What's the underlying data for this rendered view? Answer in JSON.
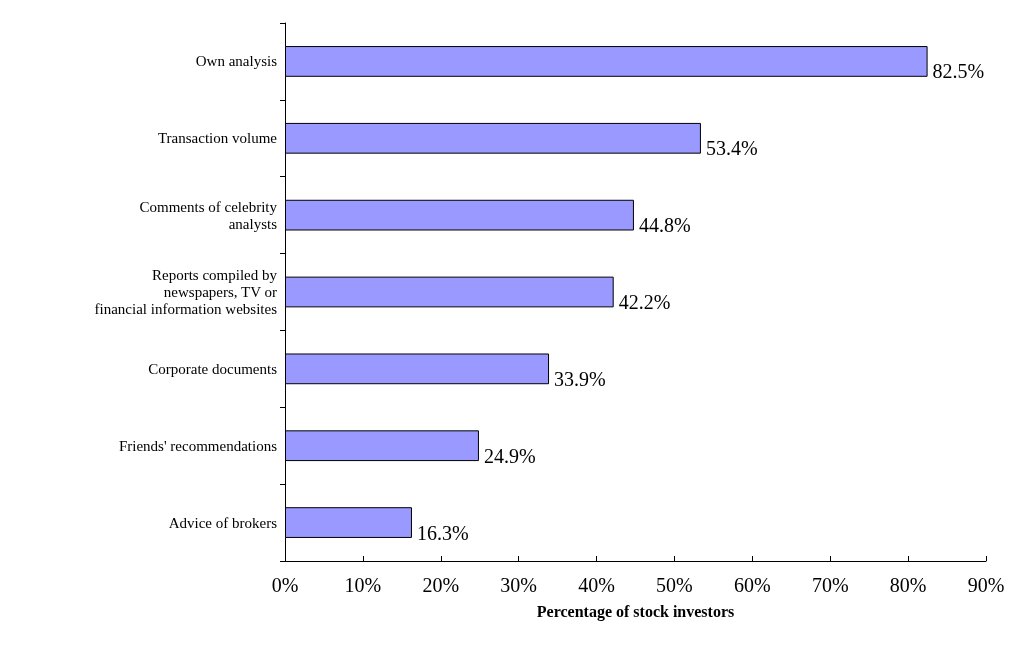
{
  "chart_data": {
    "type": "bar",
    "orientation": "horizontal",
    "xlabel": "Percentage of stock investors",
    "categories": [
      "Own analysis",
      "Transaction volume",
      "Comments of celebrity\nanalysts",
      "Reports compiled by\nnewspapers, TV or\nfinancial information websites",
      "Corporate documents",
      "Friends' recommendations",
      "Advice of brokers"
    ],
    "values": [
      82.5,
      53.4,
      44.8,
      42.2,
      33.9,
      24.9,
      16.3
    ],
    "value_labels": [
      "82.5%",
      "53.4%",
      "44.8%",
      "42.2%",
      "33.9%",
      "24.9%",
      "16.3%"
    ],
    "color": "#9999ff",
    "xlim": [
      0,
      90
    ],
    "xticks": [
      {
        "value": 0,
        "label": "0%"
      },
      {
        "value": 10,
        "label": "10%"
      },
      {
        "value": 20,
        "label": "20%"
      },
      {
        "value": 30,
        "label": "30%"
      },
      {
        "value": 40,
        "label": "40%"
      },
      {
        "value": 50,
        "label": "50%"
      },
      {
        "value": 60,
        "label": "60%"
      },
      {
        "value": 70,
        "label": "70%"
      },
      {
        "value": 80,
        "label": "80%"
      },
      {
        "value": 90,
        "label": "90%"
      }
    ],
    "grid": false
  }
}
